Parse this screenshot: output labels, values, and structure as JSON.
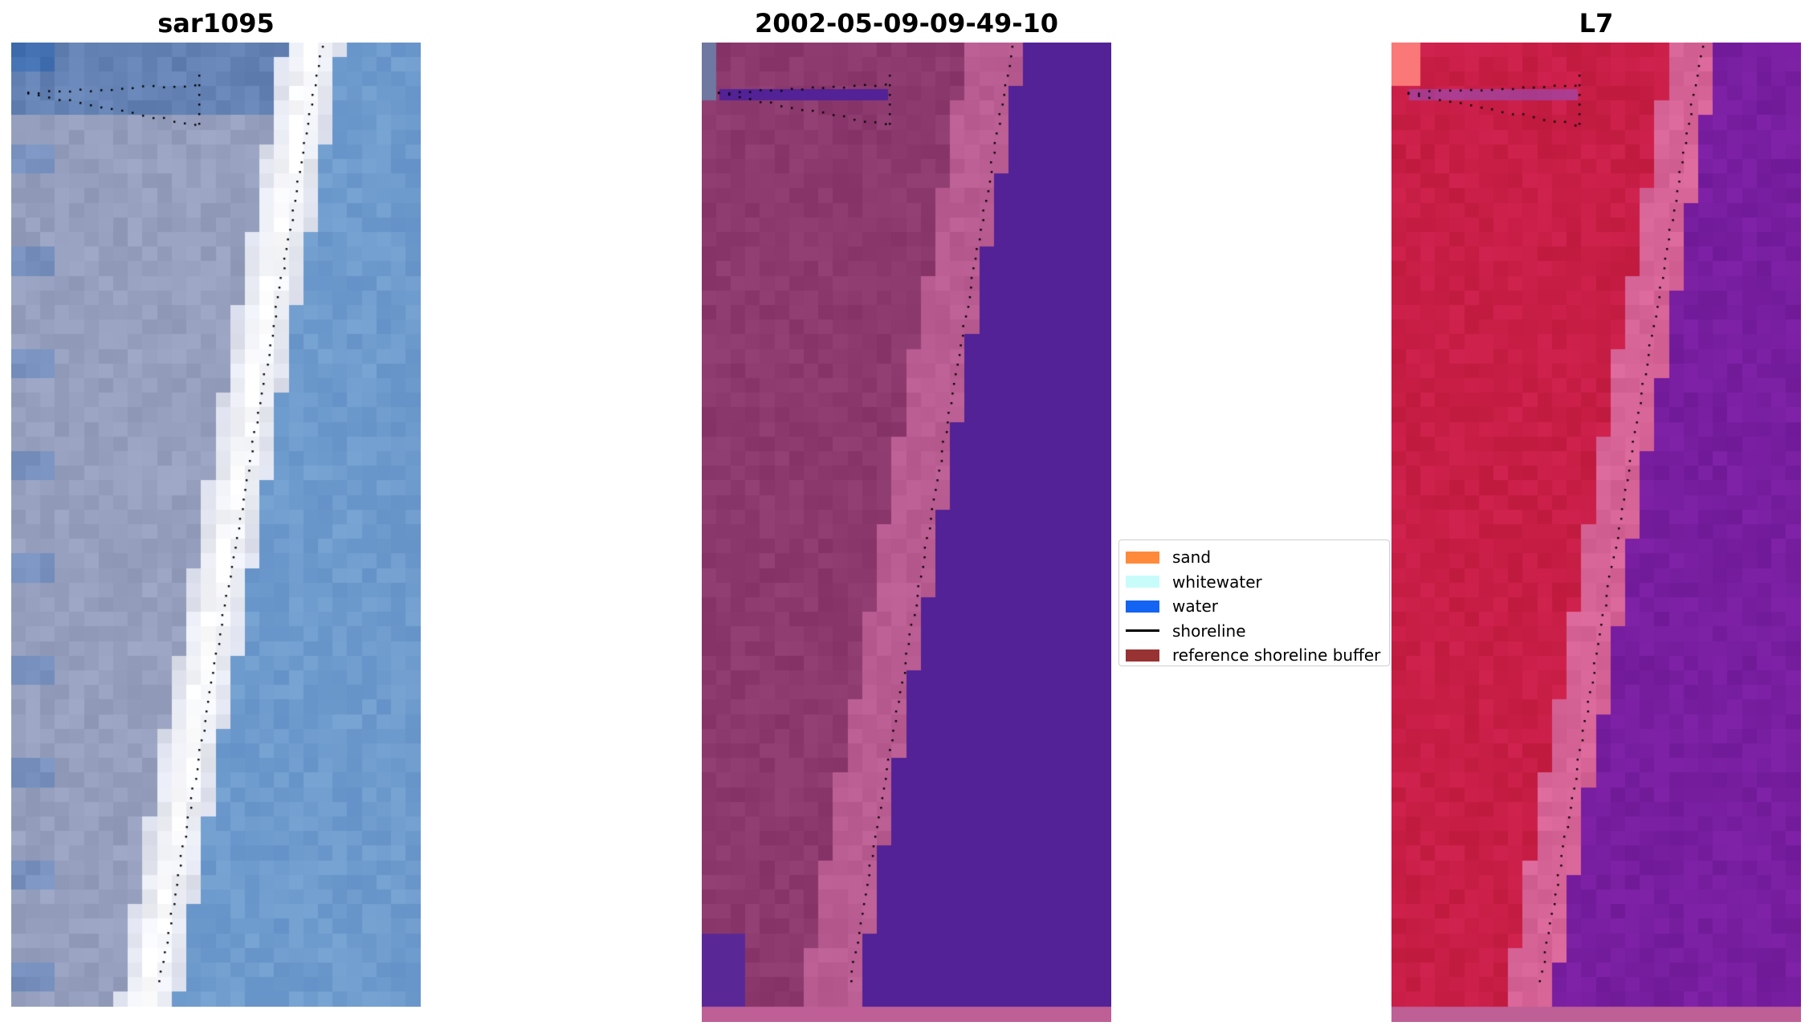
{
  "panels": [
    {
      "title": "sar1095"
    },
    {
      "title": "2002-05-09-09-49-10"
    },
    {
      "title": "L7"
    }
  ],
  "legend": {
    "items": [
      {
        "label": "sand",
        "color": "#ff8a3c",
        "kind": "patch",
        "icon": "sand-swatch"
      },
      {
        "label": "whitewater",
        "color": "#c8fcfa",
        "kind": "patch",
        "icon": "whitewater-swatch"
      },
      {
        "label": "water",
        "color": "#1464f4",
        "kind": "patch",
        "icon": "water-swatch"
      },
      {
        "label": "shoreline",
        "color": "#000000",
        "kind": "line",
        "icon": "shoreline-line"
      },
      {
        "label": "reference shoreline buffer",
        "color": "#993333",
        "kind": "patch",
        "icon": "buffer-swatch"
      }
    ]
  }
}
